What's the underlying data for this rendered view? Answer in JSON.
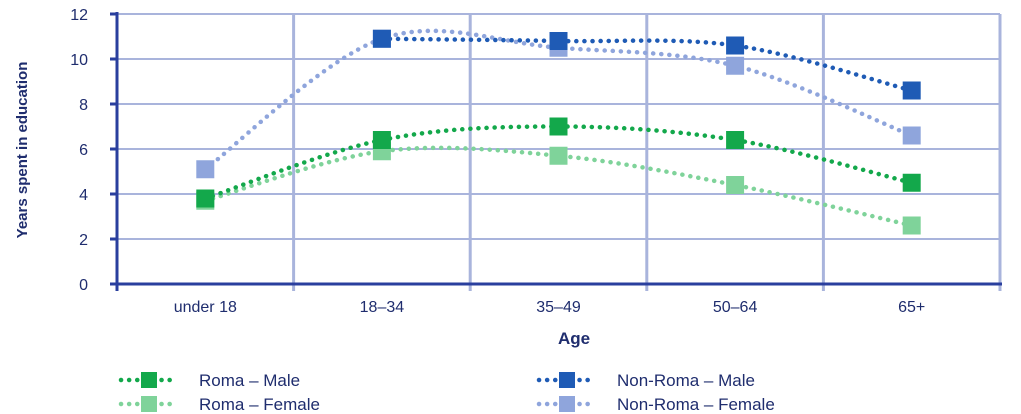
{
  "chart_data": {
    "type": "line",
    "xlabel": "Age",
    "ylabel": "Years spent in education",
    "categories": [
      "under 18",
      "18–34",
      "35–49",
      "50–64",
      "65+"
    ],
    "ylim": [
      0,
      12
    ],
    "yticks": [
      0,
      2,
      4,
      6,
      8,
      10,
      12
    ],
    "grid": true,
    "legend_position": "bottom",
    "series": [
      {
        "name": "Roma – Male",
        "color": "#13a84b",
        "values": [
          3.8,
          6.4,
          7.0,
          6.4,
          4.5
        ]
      },
      {
        "name": "Non-Roma – Male",
        "color": "#1f5bb5",
        "values": [
          null,
          10.9,
          10.8,
          10.6,
          8.6
        ]
      },
      {
        "name": "Roma – Female",
        "color": "#7fd39a",
        "values": [
          3.7,
          5.9,
          5.7,
          4.4,
          2.6
        ]
      },
      {
        "name": "Non-Roma – Female",
        "color": "#8fa5dc",
        "values": [
          5.1,
          10.9,
          10.5,
          9.7,
          6.6
        ]
      }
    ]
  }
}
